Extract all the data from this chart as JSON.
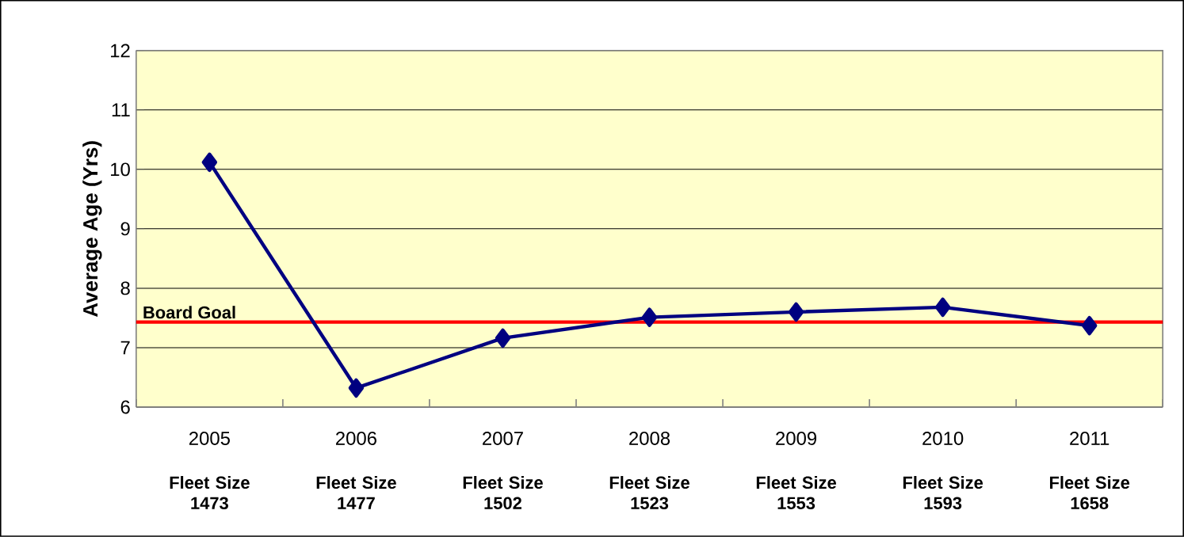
{
  "chart_data": {
    "type": "line",
    "ylabel": "Average Age (Yrs)",
    "categories": [
      "2005",
      "2006",
      "2007",
      "2008",
      "2009",
      "2010",
      "2011"
    ],
    "values": [
      10.12,
      6.32,
      7.16,
      7.51,
      7.6,
      7.68,
      7.37
    ],
    "color": "#000080",
    "marker": "diamond",
    "line_style": "solid",
    "ylim": [
      6,
      12
    ],
    "yticks": [
      6,
      7,
      8,
      9,
      10,
      11,
      12
    ],
    "grid": "y",
    "ref_lines": [
      {
        "axis": "y",
        "value": 7.43,
        "label": "Board Goal",
        "color": "#ff0000"
      }
    ],
    "annotations": [
      "Fleet Size 1473",
      "Fleet Size 1477",
      "Fleet Size 1502",
      "Fleet Size 1523",
      "Fleet Size 1553",
      "Fleet Size 1593",
      "Fleet Size 1658"
    ]
  }
}
